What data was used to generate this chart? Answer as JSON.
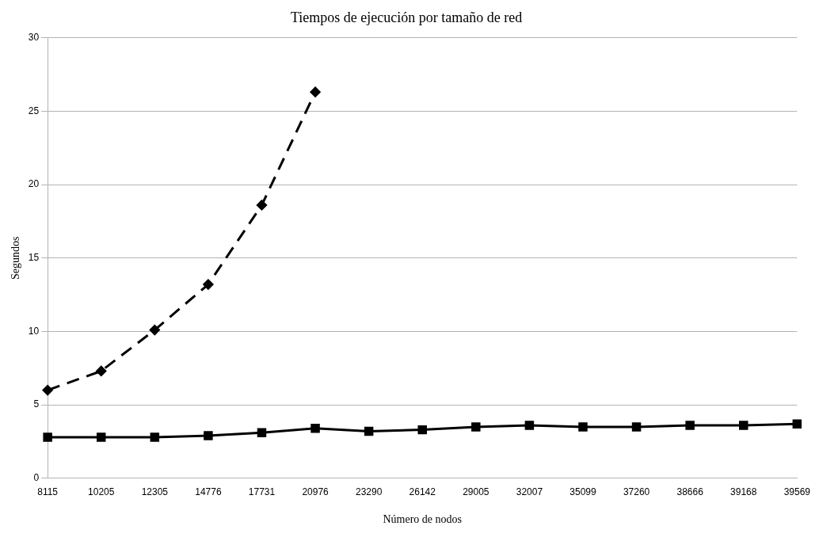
{
  "chart_data": {
    "type": "line",
    "title": "Tiempos de ejecución por tamaño de red",
    "xlabel": "Número de nodos",
    "ylabel": "Segundos",
    "categories": [
      "8115",
      "10205",
      "12305",
      "14776",
      "17731",
      "20976",
      "23290",
      "26142",
      "29005",
      "32007",
      "35099",
      "37260",
      "38666",
      "39168",
      "39569"
    ],
    "series": [
      {
        "color": "#000000",
        "marker": "diamond",
        "line_style": "dashed",
        "values": [
          6.0,
          7.3,
          10.1,
          13.2,
          18.6,
          26.3,
          null,
          null,
          null,
          null,
          null,
          null,
          null,
          null,
          null
        ]
      },
      {
        "color": "#000000",
        "marker": "square",
        "line_style": "solid",
        "values": [
          2.8,
          2.8,
          2.8,
          2.9,
          3.1,
          3.4,
          3.2,
          3.3,
          3.5,
          3.6,
          3.5,
          3.5,
          3.6,
          3.6,
          3.7
        ]
      }
    ],
    "ylim": [
      0,
      30
    ],
    "yticks": [
      0,
      5,
      10,
      15,
      20,
      25,
      30
    ],
    "grid": "y",
    "legend": false
  }
}
